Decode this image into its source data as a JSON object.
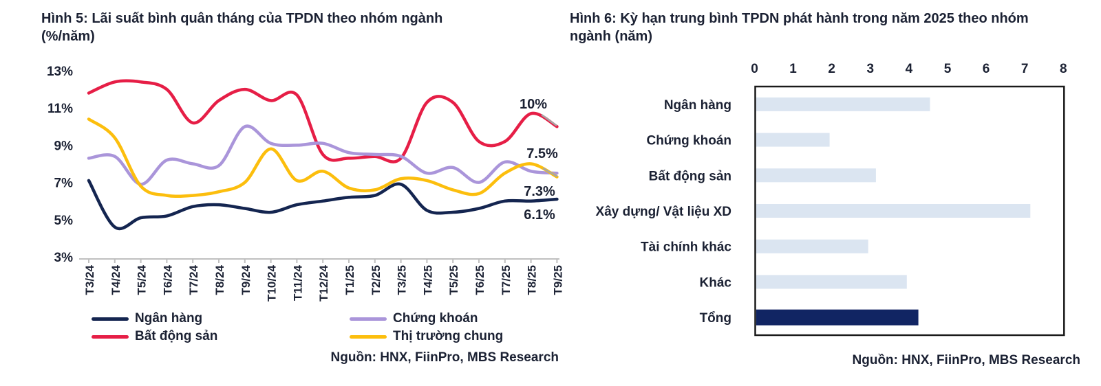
{
  "colors": {
    "text": "#1b2133",
    "end_label_text": "#1f3864",
    "axis_gray": "#bfbfbf",
    "leader_gray": "#a6a6a6",
    "bar_border": "#1a1a1a"
  },
  "chart_data": [
    {
      "type": "line",
      "title": "Hình 5: Lãi suất bình quân tháng của TPDN theo nhóm ngành",
      "subtitle": "(%/năm)",
      "source": "Nguồn: HNX, FiinPro, MBS Research",
      "x": [
        "T3/24",
        "T4/24",
        "T5/24",
        "T6/24",
        "T7/24",
        "T8/24",
        "T9/24",
        "T10/24",
        "T11/24",
        "T12/24",
        "T1/25",
        "T2/25",
        "T3/25",
        "T4/25",
        "T5/25",
        "T6/25",
        "T7/25",
        "T8/25",
        "T9/25"
      ],
      "ylim": [
        3,
        13
      ],
      "ytick_values": [
        13,
        11,
        9,
        7,
        5,
        3
      ],
      "ytick_labels": [
        "13%",
        "11%",
        "9%",
        "7%",
        "5%",
        "3%"
      ],
      "grid": false,
      "legend_position": "bottom",
      "series": [
        {
          "name": "Ngân hàng",
          "color": "#142550",
          "values": [
            7.1,
            4.6,
            5.1,
            5.2,
            5.7,
            5.8,
            5.6,
            5.4,
            5.8,
            6.0,
            6.2,
            6.3,
            6.9,
            5.5,
            5.4,
            5.6,
            6.0,
            6.0,
            6.1
          ]
        },
        {
          "name": "Bất động sản",
          "color": "#e61e46",
          "values": [
            11.8,
            12.4,
            12.4,
            12.0,
            10.2,
            11.4,
            12.0,
            11.4,
            11.7,
            8.5,
            8.3,
            8.4,
            8.3,
            11.3,
            11.3,
            9.2,
            9.2,
            10.7,
            10.0
          ]
        },
        {
          "name": "Chứng khoán",
          "color": "#aa95da",
          "values": [
            8.3,
            8.4,
            6.9,
            8.2,
            8.0,
            7.9,
            10.0,
            9.1,
            9.0,
            9.1,
            8.6,
            8.5,
            8.4,
            7.5,
            7.8,
            7.0,
            8.1,
            7.6,
            7.5
          ]
        },
        {
          "name": "Thị trường chung",
          "color": "#fcbe0d",
          "values": [
            10.4,
            9.4,
            6.8,
            6.3,
            6.3,
            6.5,
            7.0,
            8.8,
            7.1,
            7.6,
            6.7,
            6.6,
            7.2,
            7.1,
            6.6,
            6.4,
            7.5,
            8.0,
            7.3
          ]
        }
      ],
      "end_labels": [
        "10%",
        "7.5%",
        "7.3%",
        "6.1%"
      ]
    },
    {
      "type": "bar",
      "orientation": "horizontal",
      "title": "Hình 6: Kỳ hạn trung bình TPDN phát hành trong năm 2025 theo nhóm ngành (năm)",
      "source": "Nguồn: HNX, FiinPro, MBS Research",
      "categories": [
        "Ngân hàng",
        "Chứng khoán",
        "Bất động sản",
        "Xây dựng/ Vật liệu XD",
        "Tài chính khác",
        "Khác",
        "Tổng"
      ],
      "values": [
        4.5,
        1.9,
        3.1,
        7.1,
        2.9,
        3.9,
        4.2
      ],
      "xlim": [
        0,
        8
      ],
      "xticks": [
        "0",
        "1",
        "2",
        "3",
        "4",
        "5",
        "6",
        "7",
        "8"
      ],
      "grid": false,
      "bar_colors": [
        "#dbe5f1",
        "#dbe5f1",
        "#dbe5f1",
        "#dbe5f1",
        "#dbe5f1",
        "#dbe5f1",
        "#112563"
      ]
    }
  ]
}
